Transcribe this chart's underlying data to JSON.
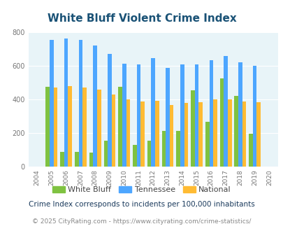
{
  "title": "White Bluff Violent Crime Index",
  "years": [
    2004,
    2005,
    2006,
    2007,
    2008,
    2009,
    2010,
    2011,
    2012,
    2013,
    2014,
    2015,
    2016,
    2017,
    2018,
    2019,
    2020
  ],
  "white_bluff": [
    0,
    475,
    88,
    88,
    82,
    155,
    475,
    128,
    155,
    213,
    213,
    453,
    267,
    523,
    422,
    193,
    0
  ],
  "tennessee": [
    0,
    755,
    765,
    755,
    722,
    670,
    612,
    608,
    648,
    588,
    608,
    610,
    635,
    658,
    622,
    600,
    0
  ],
  "national": [
    0,
    470,
    478,
    470,
    458,
    428,
    400,
    388,
    390,
    368,
    378,
    382,
    400,
    400,
    385,
    382,
    0
  ],
  "color_wb": "#7fc241",
  "color_tn": "#4da6ff",
  "color_nat": "#ffbb33",
  "bg_color": "#e8f4f8",
  "fig_bg": "#ffffff",
  "ylim": [
    0,
    800
  ],
  "yticks": [
    0,
    200,
    400,
    600,
    800
  ],
  "footnote1": "Crime Index corresponds to incidents per 100,000 inhabitants",
  "footnote2": "© 2025 CityRating.com - https://www.cityrating.com/crime-statistics/",
  "bar_width": 0.27,
  "title_color": "#1a5276",
  "footnote1_color": "#1a3a5c",
  "footnote2_color": "#888888",
  "tick_color": "#777777",
  "label_colors": "#555555"
}
